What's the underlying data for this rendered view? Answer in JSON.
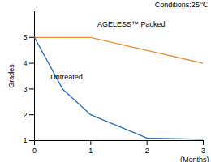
{
  "chart_data": {
    "type": "line",
    "subtitle": "Conditions:25℃",
    "xlabel": "(Months)",
    "ylabel": "Grades",
    "series": [
      {
        "name": "AGELESS™ Packed",
        "color": "#e8913a",
        "x": [
          0,
          1,
          3
        ],
        "values": [
          5,
          5,
          4
        ]
      },
      {
        "name": "Untreated",
        "color": "#2e6eb5",
        "x": [
          0,
          0.5,
          1,
          2,
          3
        ],
        "values": [
          5,
          3,
          2,
          1.1,
          1.05
        ]
      }
    ],
    "xlim": [
      0,
      3
    ],
    "xticks": [
      0,
      1,
      2,
      3
    ],
    "ylim": [
      1,
      6
    ],
    "yticks": [
      1,
      2,
      3,
      4,
      5
    ],
    "grid": false
  }
}
